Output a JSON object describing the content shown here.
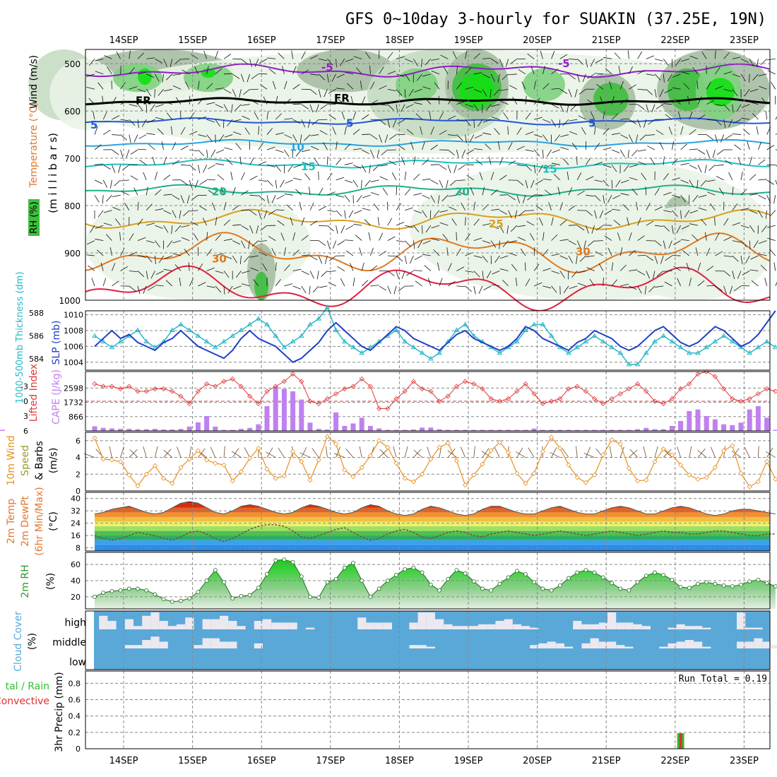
{
  "title": "GFS 0~10day 3-hourly for SUAKIN (37.25E, 19N)",
  "days": [
    "14SEP",
    "15SEP",
    "16SEP",
    "17SEP",
    "18SEP",
    "19SEP",
    "20SEP",
    "21SEP",
    "22SEP",
    "23SEP"
  ],
  "run_total_text": "Run Total = 0.19",
  "colors": {
    "rh1": "#e9f3e6",
    "rh2": "#c7dcc3",
    "rh3": "#a6bea3",
    "rh4": "#7fd27f",
    "rh5": "#3ebf3e",
    "rh6": "#12e012",
    "freezing": "#000000",
    "t_neg5": "#8e1fc4",
    "t_5": "#2357d6",
    "t_10": "#2aa3e0",
    "t_15": "#1fc0c0",
    "t_20": "#1fb08a",
    "t_25": "#d9a020",
    "t_30": "#e07820",
    "t_35": "#e02040",
    "slp": "#1f3fc8",
    "thickness": "#28b8c8",
    "lifted": "#e03838",
    "cape": "#c080f0",
    "wind10": "#e89020",
    "cloud_bg": "#5aa8d8",
    "cloud_fill": "#ebe8f0",
    "precip_total": "#30c030",
    "precip_conv": "#e03030"
  },
  "labels": {
    "upper_y": "(m i l l i b a r s)",
    "upper_wind": "Wind (m/s)",
    "upper_temp": "Temperature (°C)",
    "upper_rh": "RH (%)",
    "thick_label": "1000-500mb Thickness (dm)",
    "slp_label": "SLP (mb)",
    "li_label": "Lifted Index",
    "cape_label": "CAPE (J/kg)",
    "wind10_a": "10m Wind",
    "wind10_b": "Speed",
    "wind10_c": "& Barbs",
    "wind10_u": "(m/s)",
    "temp_a": "2m Temp",
    "temp_b": "2m DewPt",
    "temp_c": "(6hr Min/Max)",
    "temp_u": "(°C)",
    "rh2m": "2m RH",
    "rh2m_u": "(%)",
    "cloud_a": "Cloud Cover",
    "cloud_u": "(%)",
    "cloud_high": "high",
    "cloud_mid": "middle",
    "cloud_low": "low",
    "precip_a": "tal / Rain",
    "precip_b": "Convective",
    "precip_y": "3hr Precip (mm)"
  },
  "contour_labels": {
    "fr": "FR",
    "m5": "-5",
    "p5": "5",
    "p10": "10",
    "p15": "15",
    "p20": "20",
    "p25": "25",
    "p30": "30"
  },
  "chart_data": [
    {
      "type": "heatmap",
      "name": "upper-air cross-section",
      "y_ticks": [
        500,
        600,
        700,
        800,
        900,
        1000
      ],
      "ylim": [
        1000,
        470
      ],
      "contours_levels_c": [
        -5,
        0,
        5,
        10,
        15,
        20,
        25,
        30,
        35
      ],
      "approx_level_mb": {
        "-5": 515,
        "0": 580,
        "5": 622,
        "10": 668,
        "15": 712,
        "20": 768,
        "25": 830,
        "30": 900
      }
    },
    {
      "type": "line",
      "name": "slp-thickness",
      "slp_ticks": [
        1004,
        1006,
        1008,
        1010
      ],
      "thickness_ticks": [
        584,
        586,
        588
      ],
      "slp_mb": [
        1006.0,
        1007.0,
        1008.0,
        1007.0,
        1007.5,
        1006.5,
        1006.0,
        1005.5,
        1006.5,
        1007.0,
        1008.0,
        1007.0,
        1006.0,
        1005.5,
        1005.0,
        1004.5,
        1005.5,
        1007.0,
        1008.0,
        1007.0,
        1006.5,
        1006.0,
        1005.0,
        1004.0,
        1004.5,
        1005.5,
        1006.5,
        1008.0,
        1009.0,
        1008.0,
        1007.0,
        1006.0,
        1005.5,
        1006.5,
        1007.5,
        1008.5,
        1008.0,
        1007.0,
        1006.5,
        1006.0,
        1005.5,
        1006.5,
        1007.5,
        1008.0,
        1007.0,
        1006.5,
        1006.0,
        1005.5,
        1006.0,
        1007.0,
        1008.5,
        1008.0,
        1007.0,
        1006.5,
        1006.0,
        1005.5,
        1006.5,
        1007.0,
        1008.0,
        1007.5,
        1007.0,
        1006.0,
        1005.5,
        1006.0,
        1007.0,
        1008.0,
        1008.5,
        1007.5,
        1006.5,
        1006.0,
        1006.5,
        1007.5,
        1008.5,
        1008.0,
        1007.0,
        1006.0,
        1006.5,
        1007.5,
        1009.0,
        1010.5
      ],
      "thickness_dm": [
        586.0,
        585.5,
        585.0,
        585.5,
        586.0,
        586.5,
        585.5,
        585.0,
        585.5,
        586.5,
        587.0,
        586.5,
        586.0,
        585.5,
        585.0,
        585.5,
        586.0,
        586.5,
        587.0,
        587.5,
        587.0,
        586.0,
        585.0,
        585.5,
        586.0,
        587.0,
        587.5,
        588.5,
        586.5,
        585.5,
        585.0,
        584.5,
        585.0,
        585.5,
        586.0,
        586.5,
        585.5,
        585.0,
        584.5,
        584.0,
        584.5,
        585.5,
        586.5,
        587.0,
        586.0,
        585.5,
        585.0,
        584.5,
        585.0,
        585.5,
        586.5,
        587.0,
        587.0,
        586.0,
        585.0,
        584.5,
        585.0,
        585.5,
        586.0,
        585.5,
        585.0,
        584.5,
        583.5,
        583.5,
        584.5,
        585.5,
        586.0,
        585.5,
        585.0,
        584.5,
        584.5,
        585.0,
        585.5,
        586.0,
        585.5,
        585.0,
        584.5,
        585.0,
        585.5,
        585.0
      ]
    },
    {
      "type": "bar",
      "name": "cape-lifted-index",
      "li_ticks": [
        -3,
        0,
        3,
        6
      ],
      "cape_ticks": [
        866,
        1732,
        2598
      ],
      "cape_jkg": [
        280,
        180,
        150,
        120,
        120,
        100,
        100,
        120,
        80,
        80,
        120,
        260,
        520,
        900,
        260,
        60,
        60,
        120,
        180,
        400,
        1500,
        2700,
        2550,
        2400,
        1900,
        500,
        120,
        80,
        1120,
        300,
        450,
        800,
        300,
        150,
        60,
        60,
        60,
        80,
        200,
        200,
        100,
        60,
        60,
        60,
        60,
        60,
        60,
        60,
        60,
        60,
        60,
        140,
        60,
        60,
        60,
        60,
        60,
        60,
        60,
        60,
        60,
        60,
        60,
        100,
        180,
        100,
        100,
        300,
        600,
        1200,
        1300,
        900,
        700,
        400,
        350,
        500,
        1300,
        1500,
        800,
        60,
        60,
        60
      ],
      "lifted_index": [
        -3.5,
        -3.0,
        -3.0,
        -2.5,
        -3.0,
        -2.0,
        -2.0,
        -2.5,
        -2.5,
        -2.0,
        -1.0,
        0.5,
        -2.0,
        -3.5,
        -3.0,
        -4.0,
        -4.5,
        -3.0,
        -1.0,
        0.5,
        -2.0,
        -3.0,
        -4.0,
        -5.5,
        -4.0,
        0.0,
        0.5,
        -0.5,
        -1.5,
        -2.5,
        -3.0,
        -4.5,
        -3.0,
        1.5,
        1.5,
        -0.5,
        -2.0,
        -4.0,
        -2.5,
        -2.0,
        0.0,
        -1.0,
        -3.0,
        -4.0,
        -3.5,
        -2.5,
        -0.5,
        0.0,
        -0.5,
        -2.0,
        -3.5,
        -1.5,
        0.5,
        0.0,
        -0.5,
        -2.5,
        -3.0,
        -2.0,
        -0.5,
        0.5,
        -0.5,
        -1.5,
        -2.5,
        -3.5,
        -2.0,
        0.0,
        0.5,
        -0.5,
        -2.5,
        -3.5,
        -5.5,
        -6.0,
        -5.0,
        -2.5,
        -0.5,
        0.0,
        -0.5,
        -1.5,
        -2.5,
        -2.0
      ]
    },
    {
      "type": "line",
      "name": "10m-wind-speed",
      "y_ticks": [
        0,
        2,
        4,
        6
      ],
      "ylim": [
        0,
        7
      ],
      "speed_ms": [
        6.3,
        3.8,
        3.7,
        3.5,
        1.9,
        0.6,
        2.0,
        3.0,
        1.5,
        0.9,
        2.8,
        3.8,
        4.8,
        3.7,
        3.3,
        3.1,
        1.2,
        2.3,
        3.9,
        5.1,
        2.6,
        1.5,
        1.8,
        4.7,
        3.5,
        1.3,
        3.7,
        6.5,
        5.6,
        2.5,
        1.7,
        2.8,
        4.2,
        6.0,
        5.2,
        3.3,
        1.5,
        1.1,
        2.0,
        3.8,
        5.2,
        5.7,
        3.6,
        0.7,
        1.9,
        3.2,
        4.8,
        5.8,
        4.6,
        2.1,
        0.9,
        2.1,
        4.7,
        6.4,
        5.1,
        3.1,
        1.6,
        1.0,
        1.9,
        4.3,
        6.1,
        5.6,
        2.7,
        1.2,
        1.3,
        3.5,
        5.0,
        4.3,
        3.1,
        1.9,
        1.4,
        1.6,
        2.8,
        4.8,
        5.4,
        2.1,
        0.5,
        1.1,
        3.5,
        1.4
      ]
    },
    {
      "type": "area",
      "name": "2m-temp-dewpoint",
      "y_ticks": [
        8,
        16,
        24,
        32,
        40
      ],
      "ylim": [
        6,
        44
      ],
      "temp_c": [
        30,
        31,
        33,
        34,
        35,
        33,
        31,
        30,
        31,
        34,
        37,
        38,
        37,
        34,
        31,
        30,
        32,
        35,
        36,
        35,
        33,
        31,
        30,
        31,
        34,
        36,
        35,
        33,
        31,
        30,
        31,
        34,
        36,
        35,
        32,
        30,
        29,
        30,
        33,
        35,
        34,
        32,
        30,
        29,
        30,
        33,
        35,
        35,
        33,
        31,
        30,
        30,
        32,
        34,
        35,
        33,
        31,
        30,
        30,
        32,
        34,
        35,
        34,
        32,
        30,
        30,
        32,
        34,
        35,
        34,
        32,
        30,
        29,
        30,
        32,
        33,
        33,
        32,
        31,
        30
      ],
      "dewpoint_c": [
        16,
        14,
        13,
        14,
        16,
        18,
        17,
        16,
        14,
        13,
        15,
        18,
        19,
        17,
        14,
        12,
        14,
        17,
        20,
        22,
        23,
        23,
        22,
        19,
        15,
        14,
        16,
        18,
        20,
        21,
        18,
        15,
        13,
        14,
        17,
        19,
        20,
        18,
        15,
        14,
        16,
        18,
        19,
        18,
        16,
        15,
        17,
        18,
        19,
        18,
        17,
        16,
        17,
        18,
        19,
        18,
        17,
        16,
        17,
        18,
        19,
        18,
        17,
        16,
        17,
        18,
        19,
        18,
        18,
        17,
        17,
        18,
        19,
        19,
        18,
        17,
        16,
        16,
        17,
        17
      ]
    },
    {
      "type": "area",
      "name": "2m-rh",
      "y_ticks": [
        20,
        40,
        60
      ],
      "ylim": [
        5,
        75
      ],
      "rh_pct": [
        20,
        25,
        27,
        28,
        30,
        30,
        28,
        23,
        17,
        14,
        15,
        18,
        26,
        40,
        53,
        38,
        18,
        21,
        22,
        31,
        48,
        65,
        66,
        63,
        45,
        20,
        19,
        38,
        42,
        56,
        62,
        40,
        20,
        30,
        40,
        47,
        54,
        56,
        50,
        35,
        28,
        42,
        53,
        49,
        39,
        30,
        28,
        36,
        44,
        52,
        48,
        38,
        30,
        28,
        34,
        43,
        50,
        53,
        50,
        44,
        37,
        30,
        28,
        38,
        46,
        50,
        47,
        41,
        32,
        31,
        36,
        38,
        36,
        34,
        33,
        35,
        39,
        41,
        37,
        33
      ]
    },
    {
      "type": "bar",
      "name": "cloud-cover",
      "layers": [
        "high",
        "middle",
        "low"
      ],
      "high_pct": [
        0,
        80,
        50,
        0,
        60,
        20,
        80,
        100,
        50,
        20,
        30,
        70,
        0,
        60,
        60,
        80,
        50,
        20,
        0,
        50,
        60,
        40,
        40,
        40,
        0,
        10,
        0,
        0,
        0,
        0,
        0,
        70,
        40,
        40,
        40,
        0,
        0,
        40,
        100,
        100,
        60,
        30,
        20,
        20,
        20,
        30,
        30,
        50,
        60,
        30,
        20,
        10,
        0,
        0,
        0,
        0,
        50,
        30,
        30,
        40,
        100,
        40,
        40,
        30,
        20,
        0,
        0,
        10,
        30,
        20,
        20,
        10,
        0,
        0,
        0,
        100,
        10,
        10,
        0,
        0
      ],
      "middle_pct": [
        0,
        0,
        0,
        0,
        20,
        20,
        50,
        70,
        40,
        0,
        0,
        0,
        20,
        60,
        60,
        40,
        40,
        0,
        0,
        30,
        0,
        0,
        0,
        0,
        0,
        0,
        0,
        0,
        0,
        0,
        0,
        0,
        0,
        0,
        0,
        0,
        0,
        20,
        20,
        10,
        0,
        0,
        0,
        0,
        0,
        0,
        0,
        0,
        0,
        0,
        0,
        20,
        30,
        40,
        30,
        10,
        0,
        30,
        60,
        40,
        40,
        20,
        10,
        0,
        0,
        0,
        10,
        30,
        40,
        50,
        40,
        10,
        0,
        0,
        0,
        40,
        40,
        60,
        40,
        20
      ],
      "low_pct": [
        0,
        0,
        0,
        0,
        0,
        0,
        0,
        0,
        0,
        0,
        0,
        0,
        0,
        0,
        0,
        0,
        0,
        0,
        0,
        0,
        0,
        0,
        0,
        0,
        0,
        0,
        0,
        0,
        0,
        0,
        0,
        0,
        0,
        0,
        0,
        0,
        0,
        0,
        0,
        0,
        0,
        0,
        0,
        0,
        0,
        0,
        0,
        0,
        0,
        0,
        0,
        0,
        0,
        0,
        0,
        0,
        0,
        0,
        0,
        0,
        0,
        0,
        0,
        0,
        0,
        0,
        0,
        0,
        0,
        0,
        0,
        0,
        0,
        0,
        0,
        0,
        0,
        0,
        0,
        0
      ]
    },
    {
      "type": "bar",
      "name": "3hr-precip",
      "y_ticks": [
        0,
        0.2,
        0.4,
        0.6,
        0.8
      ],
      "ylim": [
        0,
        0.95
      ],
      "total_mm": [
        0,
        0,
        0,
        0,
        0,
        0,
        0,
        0,
        0,
        0,
        0,
        0,
        0,
        0,
        0,
        0,
        0,
        0,
        0,
        0,
        0,
        0,
        0,
        0,
        0,
        0,
        0,
        0,
        0,
        0,
        0,
        0,
        0,
        0,
        0,
        0,
        0,
        0,
        0,
        0,
        0,
        0,
        0,
        0,
        0,
        0,
        0,
        0,
        0,
        0,
        0,
        0,
        0,
        0,
        0,
        0,
        0,
        0,
        0,
        0,
        0,
        0,
        0,
        0,
        0,
        0,
        0,
        0,
        0.19,
        0,
        0,
        0,
        0,
        0,
        0,
        0,
        0,
        0,
        0,
        0
      ],
      "convective_mm": [
        0,
        0,
        0,
        0,
        0,
        0,
        0,
        0,
        0,
        0,
        0,
        0,
        0,
        0,
        0,
        0,
        0,
        0,
        0,
        0,
        0,
        0,
        0,
        0,
        0,
        0,
        0,
        0,
        0,
        0,
        0,
        0,
        0,
        0,
        0,
        0,
        0,
        0,
        0,
        0,
        0,
        0,
        0,
        0,
        0,
        0,
        0,
        0,
        0,
        0,
        0,
        0,
        0,
        0,
        0,
        0,
        0,
        0,
        0,
        0,
        0,
        0,
        0,
        0,
        0,
        0,
        0,
        0,
        0.19,
        0,
        0,
        0,
        0,
        0,
        0,
        0,
        0,
        0,
        0,
        0
      ]
    }
  ]
}
